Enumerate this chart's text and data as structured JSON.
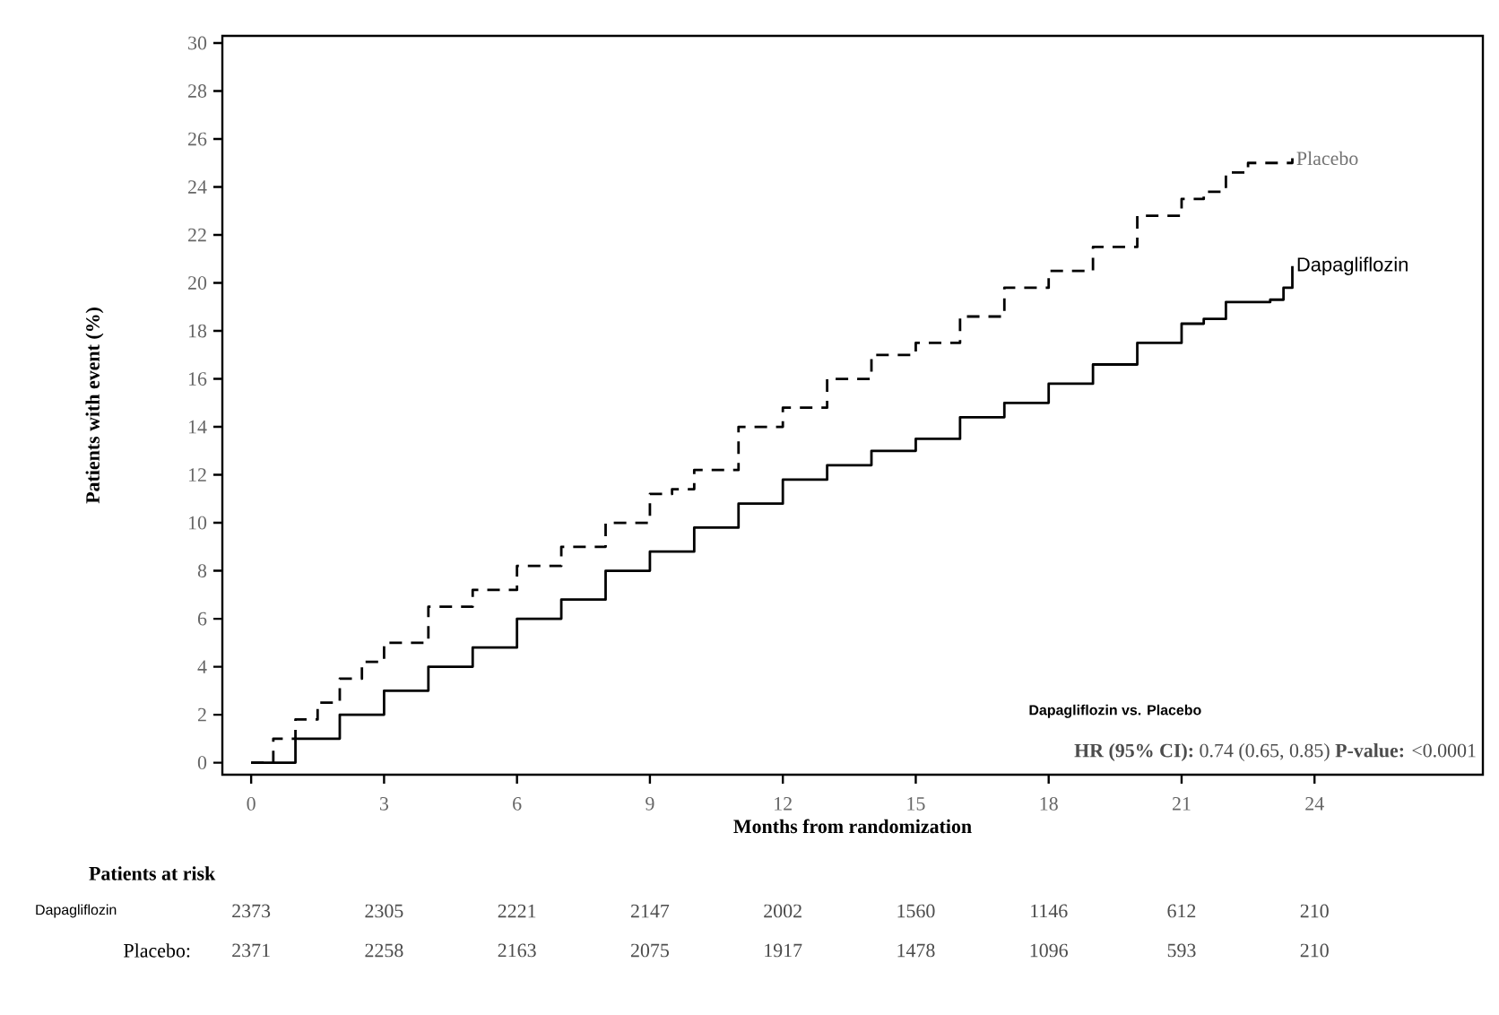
{
  "chart_data": {
    "type": "step",
    "xlabel": "Months from randomization",
    "ylabel": "Patients with event (%)",
    "xlim": [
      -0.65,
      27.8
    ],
    "ylim": [
      -0.5,
      30.3
    ],
    "xticks": [
      0,
      3,
      6,
      9,
      12,
      15,
      18,
      21,
      24
    ],
    "yticks": [
      0,
      2,
      4,
      6,
      8,
      10,
      12,
      14,
      16,
      18,
      20,
      22,
      24,
      26,
      28,
      30
    ],
    "legend": false,
    "grid": false,
    "series": [
      {
        "name": "Placebo",
        "color": "#000000",
        "line_style": "dashed",
        "x": [
          0,
          0.5,
          1,
          1.5,
          2,
          2.5,
          3,
          4,
          5,
          6,
          7,
          8,
          9,
          9.5,
          10,
          11,
          12,
          13,
          14,
          15,
          16,
          17,
          18,
          19,
          20,
          21,
          21.5,
          22,
          22.5,
          23,
          23.5
        ],
        "values": [
          0,
          1,
          1.8,
          2.5,
          3.5,
          4.2,
          5,
          6.5,
          7.2,
          8.2,
          9,
          10,
          11.2,
          11.4,
          12.2,
          14,
          14.8,
          16,
          17,
          17.5,
          18.6,
          19.8,
          20.5,
          21.5,
          22.8,
          23.5,
          23.8,
          24.6,
          25,
          25,
          25.2
        ]
      },
      {
        "name": "Dapagliflozin",
        "color": "#000000",
        "line_style": "solid",
        "x": [
          0,
          1,
          2,
          3,
          4,
          5,
          6,
          7,
          8,
          9,
          10,
          11,
          12,
          13,
          14,
          15,
          16,
          17,
          18,
          19,
          20,
          21,
          21.5,
          22,
          23,
          23.3,
          23.5
        ],
        "values": [
          0,
          1,
          2,
          3,
          4,
          4.8,
          6,
          6.8,
          8,
          8.8,
          9.8,
          10.8,
          11.8,
          12.4,
          13,
          13.5,
          14.4,
          15,
          15.8,
          16.6,
          17.5,
          18.3,
          18.5,
          19.2,
          19.3,
          19.8,
          20.7
        ]
      }
    ],
    "annotations": [
      "Dapagliflozin **vs. Placebo**",
      "**HR (95% CI):** 0.74 (0.65, 0.85)  **P-value:** <0.0001",
      "Patients at risk",
      "Dapagliflozin",
      "2373",
      "2305",
      "2221",
      "2147",
      "2002",
      "1560",
      "1146",
      "612",
      "210",
      "Placebo:",
      "2371",
      "2258",
      "2163",
      "2075",
      "1917",
      "1478",
      "1096",
      "593",
      "210"
    ]
  }
}
